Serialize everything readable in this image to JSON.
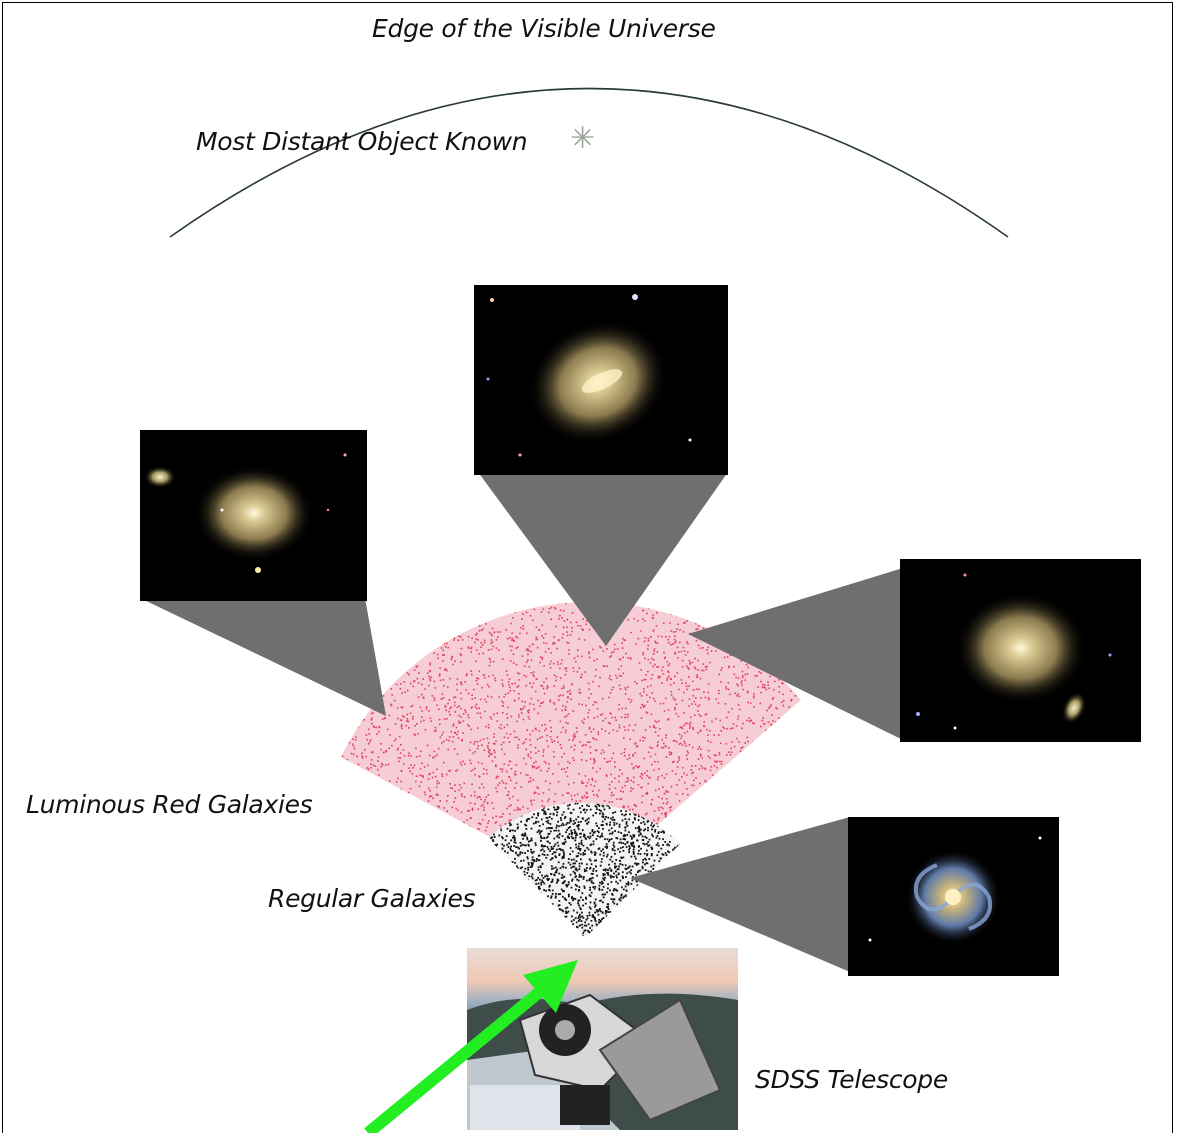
{
  "labels": {
    "edge": "Edge of the Visible Universe",
    "distant": "Most Distant Object Known",
    "lrg": "Luminous Red Galaxies",
    "regular": "Regular Galaxies",
    "telescope": "SDSS Telescope"
  },
  "icons": {
    "distant_marker": "asterisk-icon",
    "pointer": "green-arrow-icon"
  },
  "colors": {
    "lrg_points": "#e0405a",
    "regular_points": "#111111",
    "cone": "#686868",
    "arrow": "#22ee22",
    "sky": "#000000"
  },
  "star_glyph": "✳"
}
